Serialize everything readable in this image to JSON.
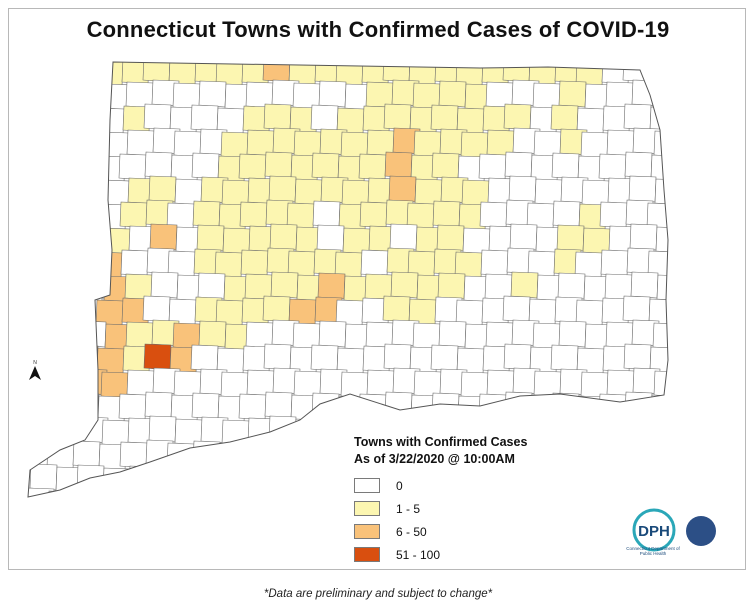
{
  "title": "Connecticut Towns with Confirmed Cases of COVID-19",
  "legend": {
    "title": "Towns with Confirmed Cases",
    "as_of": "As of 3/22/2020 @ 10:00AM",
    "items": [
      {
        "label": "0",
        "color": "#ffffff"
      },
      {
        "label": "1 - 5",
        "color": "#fcf6b1"
      },
      {
        "label": "6 - 50",
        "color": "#f9c27a"
      },
      {
        "label": "51 - 100",
        "color": "#d94f0f"
      }
    ]
  },
  "colors": {
    "none": "#ffffff",
    "low": "#fcf6b1",
    "mid": "#f9c27a",
    "high": "#d94f0f",
    "border": "#6b6b6b"
  },
  "north_arrow": {
    "icon": "north-arrow-icon",
    "label": "N"
  },
  "logos": {
    "dph": "DPH",
    "dph_subtitle": "Connecticut Department of Public Health",
    "eoc_icon": "emergency-operations-seal-icon"
  },
  "footnote": "*Data are preliminary and subject to change*"
}
